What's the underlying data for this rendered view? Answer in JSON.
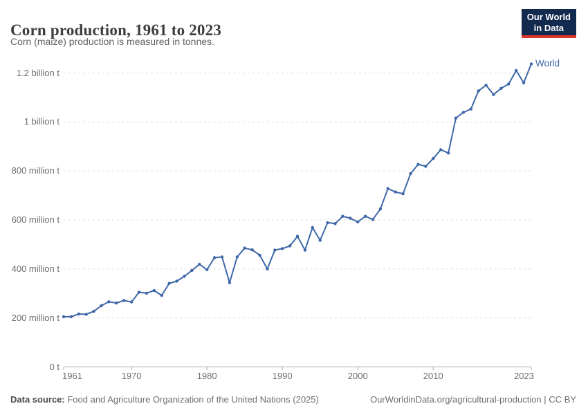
{
  "header": {
    "title": "Corn production, 1961 to 2023",
    "subtitle": "Corn (maize) production is measured in tonnes.",
    "logo": {
      "line1": "Our World",
      "line2": "in Data",
      "bg_color": "#132a4f",
      "accent_color": "#e0352b"
    }
  },
  "chart_data": {
    "type": "line",
    "title": "Corn production, 1961 to 2023",
    "unit": "tonnes",
    "values_unit": "million tonnes",
    "grid": "dashed horizontal gridlines",
    "legend_position": "end-of-line label",
    "ylim": [
      0,
      1260
    ],
    "xlim": [
      1961,
      2023
    ],
    "x": [
      1961,
      1962,
      1963,
      1964,
      1965,
      1966,
      1967,
      1968,
      1969,
      1970,
      1971,
      1972,
      1973,
      1974,
      1975,
      1976,
      1977,
      1978,
      1979,
      1980,
      1981,
      1982,
      1983,
      1984,
      1985,
      1986,
      1987,
      1988,
      1989,
      1990,
      1991,
      1992,
      1993,
      1994,
      1995,
      1996,
      1997,
      1998,
      1999,
      2000,
      2001,
      2002,
      2003,
      2004,
      2005,
      2006,
      2007,
      2008,
      2009,
      2010,
      2011,
      2012,
      2013,
      2014,
      2015,
      2016,
      2017,
      2018,
      2019,
      2020,
      2021,
      2022,
      2023
    ],
    "series": [
      {
        "name": "World",
        "color": "#3e67a8",
        "values": [
          205,
          205,
          216,
          215,
          227,
          250,
          266,
          261,
          271,
          265,
          305,
          301,
          312,
          292,
          341,
          350,
          370,
          394,
          419,
          397,
          446,
          449,
          344,
          449,
          485,
          478,
          456,
          400,
          477,
          483,
          494,
          533,
          477,
          569,
          517,
          589,
          585,
          615,
          607,
          592,
          615,
          602,
          645,
          728,
          714,
          707,
          789,
          827,
          819,
          851,
          887,
          873,
          1016,
          1039,
          1053,
          1127,
          1150,
          1112,
          1137,
          1155,
          1210,
          1160,
          1237
        ]
      }
    ],
    "ytick_values": [
      0,
      200,
      400,
      600,
      800,
      1000,
      1200
    ],
    "ytick_labels": [
      "0 t",
      "200 million t",
      "400 million t",
      "600 million t",
      "800 million t",
      "1 billion t",
      "1.2 billion t"
    ],
    "xtick_years": [
      1961,
      1970,
      1980,
      1990,
      2000,
      2010,
      2023
    ],
    "xtick_labels": [
      "1961",
      "1970",
      "1980",
      "1990",
      "2000",
      "2010",
      "2023"
    ]
  },
  "colors": {
    "line": "#3e67a8",
    "grid": "#dcdcdc",
    "axis": "#a8a8a8",
    "tick_text": "#6e6e6e"
  },
  "footer": {
    "source_label": "Data source:",
    "source_text": " Food and Agriculture Organization of the United Nations (2025)",
    "link_text": "OurWorldinData.org/agricultural-production | CC BY"
  }
}
